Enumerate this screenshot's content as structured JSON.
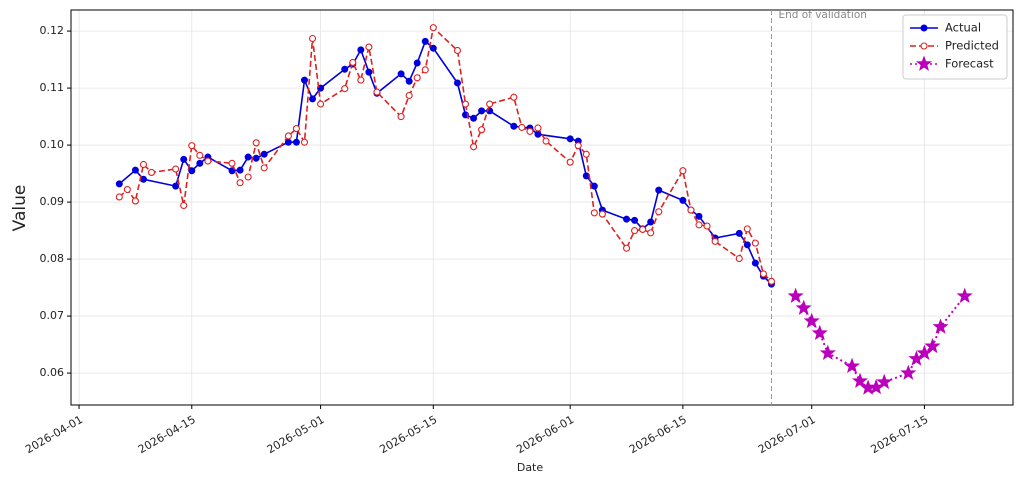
{
  "chart_data": {
    "type": "line",
    "xlabel": "Date",
    "ylabel": "Value",
    "xlim": [
      "2026-03-31",
      "2026-07-26"
    ],
    "ylim": [
      0.0544,
      0.1237
    ],
    "xticks": [
      "2026-04-01",
      "2026-04-15",
      "2026-05-01",
      "2026-05-15",
      "2026-06-01",
      "2026-06-15",
      "2026-07-01",
      "2026-07-15"
    ],
    "yticks": [
      0.06,
      0.07,
      0.08,
      0.09,
      {
        "value": 0.1,
        "label": "0.10"
      },
      0.11,
      0.12
    ],
    "grid": true,
    "legend": "upper right",
    "vline": {
      "x": "2026-06-26",
      "label": "End of validation"
    },
    "series": [
      {
        "name": "Actual",
        "color": "#0000dd",
        "line": "solid",
        "marker": "circle",
        "x": [
          "2026-04-06",
          "2026-04-08",
          "2026-04-09",
          "2026-04-13",
          "2026-04-14",
          "2026-04-15",
          "2026-04-16",
          "2026-04-17",
          "2026-04-20",
          "2026-04-21",
          "2026-04-22",
          "2026-04-23",
          "2026-04-24",
          "2026-04-27",
          "2026-04-28",
          "2026-04-29",
          "2026-04-30",
          "2026-05-01",
          "2026-05-04",
          "2026-05-05",
          "2026-05-06",
          "2026-05-07",
          "2026-05-08",
          "2026-05-11",
          "2026-05-12",
          "2026-05-13",
          "2026-05-14",
          "2026-05-15",
          "2026-05-18",
          "2026-05-19",
          "2026-05-20",
          "2026-05-21",
          "2026-05-22",
          "2026-05-25",
          "2026-05-27",
          "2026-05-28",
          "2026-06-01",
          "2026-06-02",
          "2026-06-03",
          "2026-06-04",
          "2026-06-05",
          "2026-06-08",
          "2026-06-09",
          "2026-06-10",
          "2026-06-11",
          "2026-06-12",
          "2026-06-15",
          "2026-06-16",
          "2026-06-17",
          "2026-06-19",
          "2026-06-22",
          "2026-06-23",
          "2026-06-24",
          "2026-06-25",
          "2026-06-26"
        ],
        "values": [
          0.0932,
          0.0956,
          0.094,
          0.0928,
          0.0975,
          0.0955,
          0.0968,
          0.0979,
          0.0955,
          0.0956,
          0.0979,
          0.0977,
          0.0984,
          0.1005,
          0.1005,
          0.1114,
          0.1081,
          0.11,
          0.1133,
          0.1142,
          0.1167,
          0.1128,
          0.1091,
          0.1125,
          0.1112,
          0.1144,
          0.1182,
          0.117,
          0.1109,
          0.1053,
          0.1047,
          0.106,
          0.106,
          0.1033,
          0.103,
          0.1019,
          0.1011,
          0.1007,
          0.0946,
          0.0928,
          0.0886,
          0.087,
          0.0868,
          0.0853,
          0.0865,
          0.0921,
          0.0903,
          0.0886,
          0.0875,
          0.0837,
          0.0845,
          0.0825,
          0.0793,
          0.077,
          0.0756
        ]
      },
      {
        "name": "Predicted",
        "color": "#dd2222",
        "line": "dashed",
        "marker": "open-circle",
        "x": [
          "2026-04-06",
          "2026-04-07",
          "2026-04-08",
          "2026-04-09",
          "2026-04-10",
          "2026-04-13",
          "2026-04-14",
          "2026-04-15",
          "2026-04-16",
          "2026-04-17",
          "2026-04-20",
          "2026-04-21",
          "2026-04-22",
          "2026-04-23",
          "2026-04-24",
          "2026-04-27",
          "2026-04-28",
          "2026-04-29",
          "2026-04-30",
          "2026-05-01",
          "2026-05-04",
          "2026-05-05",
          "2026-05-06",
          "2026-05-07",
          "2026-05-08",
          "2026-05-11",
          "2026-05-12",
          "2026-05-13",
          "2026-05-14",
          "2026-05-15",
          "2026-05-18",
          "2026-05-19",
          "2026-05-20",
          "2026-05-21",
          "2026-05-22",
          "2026-05-25",
          "2026-05-26",
          "2026-05-27",
          "2026-05-28",
          "2026-05-29",
          "2026-06-01",
          "2026-06-02",
          "2026-06-03",
          "2026-06-04",
          "2026-06-05",
          "2026-06-08",
          "2026-06-09",
          "2026-06-10",
          "2026-06-11",
          "2026-06-12",
          "2026-06-15",
          "2026-06-16",
          "2026-06-17",
          "2026-06-18",
          "2026-06-19",
          "2026-06-22",
          "2026-06-23",
          "2026-06-24",
          "2026-06-25",
          "2026-06-26"
        ],
        "values": [
          0.0909,
          0.0922,
          0.0902,
          0.0966,
          0.0952,
          0.0958,
          0.0894,
          0.0999,
          0.0982,
          0.0972,
          0.0968,
          0.0934,
          0.0944,
          0.1004,
          0.096,
          0.1016,
          0.1029,
          0.1005,
          0.1187,
          0.1072,
          0.1099,
          0.1145,
          0.1114,
          0.1172,
          0.1093,
          0.105,
          0.1087,
          0.1118,
          0.1132,
          0.1206,
          0.1166,
          0.1072,
          0.0997,
          0.1027,
          0.1072,
          0.1084,
          0.1031,
          0.1024,
          0.103,
          0.1007,
          0.097,
          0.0999,
          0.0984,
          0.0881,
          0.0879,
          0.0819,
          0.085,
          0.0852,
          0.0846,
          0.0883,
          0.0955,
          0.0886,
          0.086,
          0.0858,
          0.0831,
          0.0801,
          0.0853,
          0.0828,
          0.0774,
          0.0761
        ]
      },
      {
        "name": "Forecast",
        "color": "#bb00bb",
        "line": "dotted",
        "marker": "star",
        "x": [
          "2026-06-29",
          "2026-06-30",
          "2026-07-01",
          "2026-07-02",
          "2026-07-03",
          "2026-07-06",
          "2026-07-07",
          "2026-07-08",
          "2026-07-09",
          "2026-07-10",
          "2026-07-13",
          "2026-07-14",
          "2026-07-15",
          "2026-07-16",
          "2026-07-17",
          "2026-07-20"
        ],
        "values": [
          0.0735,
          0.0714,
          0.0691,
          0.067,
          0.0635,
          0.0612,
          0.0586,
          0.0574,
          0.0575,
          0.0584,
          0.06,
          0.0625,
          0.0635,
          0.0647,
          0.0681,
          0.0735
        ]
      }
    ]
  }
}
